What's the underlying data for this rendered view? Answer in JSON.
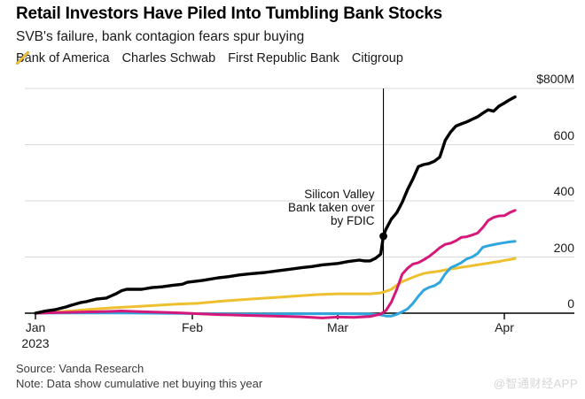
{
  "header": {
    "title": "Retail Investors Have Piled Into Tumbling Bank Stocks",
    "subtitle": "SVB's failure, bank contagion fears spur buying"
  },
  "chart_data": {
    "type": "line",
    "title": "Retail Investors Have Piled Into Tumbling Bank Stocks",
    "subtitle": "SVB's failure, bank contagion fears spur buying",
    "unit": "$M cumulative net buying",
    "x_unit": "day of year 2023",
    "grid": true,
    "legend_position": "top",
    "y_axis": {
      "range": [
        0,
        800
      ],
      "ticks": [
        {
          "label": "$800M",
          "value": 800
        },
        {
          "label": "600",
          "value": 600
        },
        {
          "label": "400",
          "value": 400
        },
        {
          "label": "200",
          "value": 200
        },
        {
          "label": "0",
          "value": 0
        }
      ]
    },
    "x_axis": {
      "ticks": [
        {
          "label": "Jan",
          "sub": "2023",
          "day": 1
        },
        {
          "label": "Feb",
          "day": 32
        },
        {
          "label": "Mar",
          "day": 60
        },
        {
          "label": "Apr",
          "day": 91
        }
      ]
    },
    "annotation": {
      "lines": [
        "Silicon Valley",
        "Bank taken over",
        "by FDIC"
      ],
      "day": 68.5,
      "marker_value": 274
    },
    "series": [
      {
        "name": "Bank of America",
        "color": "#000000",
        "points": [
          [
            1,
            0
          ],
          [
            3,
            8
          ],
          [
            5,
            13
          ],
          [
            7,
            22
          ],
          [
            8,
            28
          ],
          [
            10,
            38
          ],
          [
            11,
            41
          ],
          [
            13,
            50
          ],
          [
            15,
            54
          ],
          [
            17,
            70
          ],
          [
            18,
            80
          ],
          [
            19,
            85
          ],
          [
            22,
            85
          ],
          [
            24,
            91
          ],
          [
            26,
            94
          ],
          [
            28,
            99
          ],
          [
            30,
            103
          ],
          [
            31,
            110
          ],
          [
            34,
            117
          ],
          [
            37,
            126
          ],
          [
            39,
            130
          ],
          [
            41,
            136
          ],
          [
            43,
            140
          ],
          [
            46,
            145
          ],
          [
            48,
            150
          ],
          [
            51,
            157
          ],
          [
            53,
            162
          ],
          [
            55,
            166
          ],
          [
            57,
            172
          ],
          [
            60,
            177
          ],
          [
            62,
            184
          ],
          [
            64,
            189
          ],
          [
            65,
            186
          ],
          [
            66,
            186
          ],
          [
            67,
            195
          ],
          [
            68,
            210
          ],
          [
            68.5,
            274
          ],
          [
            69,
            300
          ],
          [
            70,
            335
          ],
          [
            71,
            358
          ],
          [
            72,
            395
          ],
          [
            73,
            440
          ],
          [
            74,
            478
          ],
          [
            75,
            522
          ],
          [
            76,
            529
          ],
          [
            77,
            533
          ],
          [
            78,
            541
          ],
          [
            79,
            556
          ],
          [
            80,
            615
          ],
          [
            81,
            645
          ],
          [
            82,
            666
          ],
          [
            83,
            674
          ],
          [
            84,
            681
          ],
          [
            85,
            690
          ],
          [
            86,
            699
          ],
          [
            87,
            712
          ],
          [
            88,
            724
          ],
          [
            89,
            719
          ],
          [
            90,
            737
          ],
          [
            91,
            748
          ],
          [
            92,
            760
          ],
          [
            93,
            770
          ]
        ]
      },
      {
        "name": "Charles Schwab",
        "color": "#d5187a",
        "points": [
          [
            1,
            0
          ],
          [
            5,
            2
          ],
          [
            10,
            4
          ],
          [
            15,
            6
          ],
          [
            18,
            8
          ],
          [
            22,
            5
          ],
          [
            26,
            3
          ],
          [
            30,
            1
          ],
          [
            33,
            -2
          ],
          [
            37,
            -5
          ],
          [
            41,
            -7
          ],
          [
            45,
            -9
          ],
          [
            49,
            -11
          ],
          [
            53,
            -13
          ],
          [
            57,
            -17
          ],
          [
            60,
            -14
          ],
          [
            63,
            -15
          ],
          [
            66,
            -12
          ],
          [
            68,
            -3
          ],
          [
            69,
            10
          ],
          [
            70,
            40
          ],
          [
            71,
            85
          ],
          [
            72,
            139
          ],
          [
            73,
            160
          ],
          [
            74,
            175
          ],
          [
            75,
            180
          ],
          [
            76,
            190
          ],
          [
            77,
            202
          ],
          [
            78,
            217
          ],
          [
            79,
            233
          ],
          [
            80,
            245
          ],
          [
            81,
            249
          ],
          [
            82,
            258
          ],
          [
            83,
            270
          ],
          [
            84,
            272
          ],
          [
            85,
            278
          ],
          [
            86,
            285
          ],
          [
            87,
            305
          ],
          [
            88,
            330
          ],
          [
            89,
            341
          ],
          [
            90,
            346
          ],
          [
            91,
            347
          ],
          [
            92,
            358
          ],
          [
            93,
            366
          ]
        ]
      },
      {
        "name": "First Republic Bank",
        "color": "#2fa6de",
        "points": [
          [
            1,
            0
          ],
          [
            6,
            1
          ],
          [
            12,
            1
          ],
          [
            18,
            1
          ],
          [
            24,
            0
          ],
          [
            30,
            -1
          ],
          [
            34,
            -2
          ],
          [
            40,
            -3
          ],
          [
            46,
            -3
          ],
          [
            52,
            -2
          ],
          [
            58,
            -2
          ],
          [
            62,
            -2
          ],
          [
            66,
            -3
          ],
          [
            68,
            -6
          ],
          [
            69,
            -10
          ],
          [
            70,
            -10
          ],
          [
            71,
            -4
          ],
          [
            72,
            5
          ],
          [
            73,
            15
          ],
          [
            74,
            35
          ],
          [
            75,
            60
          ],
          [
            76,
            82
          ],
          [
            77,
            92
          ],
          [
            78,
            98
          ],
          [
            79,
            110
          ],
          [
            80,
            140
          ],
          [
            81,
            162
          ],
          [
            82,
            170
          ],
          [
            83,
            180
          ],
          [
            84,
            193
          ],
          [
            85,
            200
          ],
          [
            86,
            212
          ],
          [
            87,
            235
          ],
          [
            88,
            240
          ],
          [
            89,
            244
          ],
          [
            90,
            248
          ],
          [
            91,
            251
          ],
          [
            92,
            254
          ],
          [
            93,
            256
          ]
        ]
      },
      {
        "name": "Citigroup",
        "color": "#eec02f",
        "points": [
          [
            1,
            0
          ],
          [
            4,
            3
          ],
          [
            8,
            8
          ],
          [
            12,
            14
          ],
          [
            16,
            19
          ],
          [
            20,
            23
          ],
          [
            25,
            28
          ],
          [
            29,
            32
          ],
          [
            33,
            35
          ],
          [
            37,
            42
          ],
          [
            40,
            46
          ],
          [
            44,
            51
          ],
          [
            48,
            56
          ],
          [
            52,
            61
          ],
          [
            56,
            66
          ],
          [
            60,
            69
          ],
          [
            63,
            69
          ],
          [
            66,
            69
          ],
          [
            68,
            72
          ],
          [
            69,
            78
          ],
          [
            70,
            85
          ],
          [
            71,
            100
          ],
          [
            72,
            112
          ],
          [
            73,
            120
          ],
          [
            74,
            128
          ],
          [
            75,
            135
          ],
          [
            76,
            141
          ],
          [
            77,
            145
          ],
          [
            78,
            147
          ],
          [
            79,
            150
          ],
          [
            80,
            154
          ],
          [
            81,
            157
          ],
          [
            82,
            160
          ],
          [
            83,
            163
          ],
          [
            84,
            166
          ],
          [
            85,
            169
          ],
          [
            86,
            172
          ],
          [
            87,
            175
          ],
          [
            88,
            178
          ],
          [
            89,
            181
          ],
          [
            90,
            184
          ],
          [
            91,
            188
          ],
          [
            92,
            191
          ],
          [
            93,
            195
          ]
        ]
      }
    ]
  },
  "footer": {
    "source": "Source: Vanda Research",
    "note": "Note: Data show cumulative net buying this year"
  },
  "watermark": "@智通财经APP"
}
